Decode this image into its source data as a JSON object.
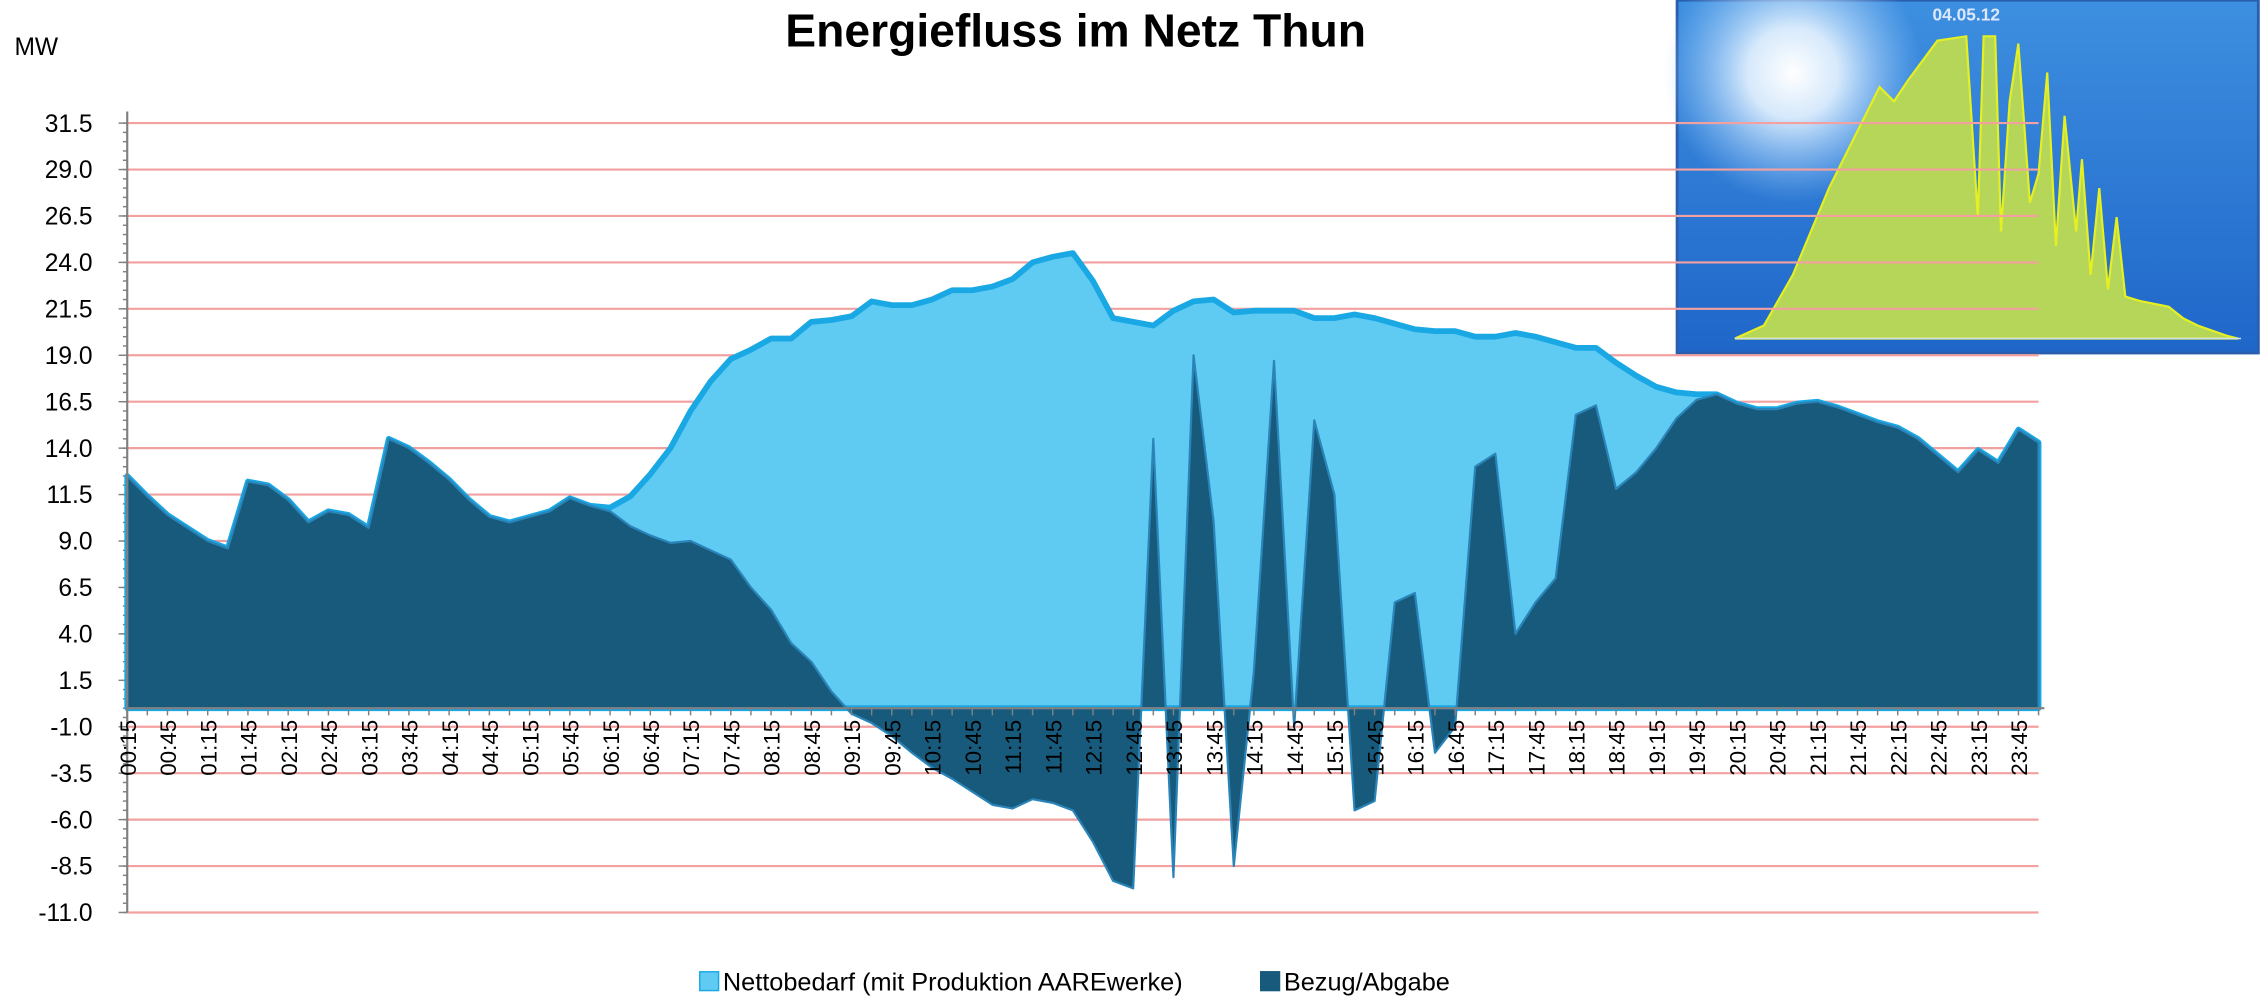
{
  "chart_data": {
    "type": "area",
    "title": "Energiefluss im Netz Thun",
    "y_label": "MW",
    "inset_title": "04.05.12",
    "categories": [
      "00:15",
      null,
      "00:45",
      null,
      "01:15",
      null,
      "01:45",
      null,
      "02:15",
      null,
      "02:45",
      null,
      "03:15",
      null,
      "03:45",
      null,
      "04:15",
      null,
      "04:45",
      null,
      "05:15",
      null,
      "05:45",
      null,
      "06:15",
      null,
      "06:45",
      null,
      "07:15",
      null,
      "07:45",
      null,
      "08:15",
      null,
      "08:45",
      null,
      "09:15",
      null,
      "09:45",
      null,
      "10:15",
      null,
      "10:45",
      null,
      "11:15",
      null,
      "11:45",
      null,
      "12:15",
      null,
      "12:45",
      null,
      "13:15",
      null,
      "13:45",
      null,
      "14:15",
      null,
      "14:45",
      null,
      "15:15",
      null,
      "15:45",
      null,
      "16:15",
      null,
      "16:45",
      null,
      "17:15",
      null,
      "17:45",
      null,
      "18:15",
      null,
      "18:45",
      null,
      "19:15",
      null,
      "19:45",
      null,
      "20:15",
      null,
      "20:45",
      null,
      "21:15",
      null,
      "21:45",
      null,
      "22:15",
      null,
      "22:45",
      null,
      "23:15",
      null,
      "23:45",
      null
    ],
    "series": [
      {
        "name": "Nettobedarf (mit Produktion AAREwerke)",
        "color": "#5fcbf3",
        "values": [
          12.5,
          11.4,
          10.4,
          9.7,
          9.0,
          8.6,
          12.2,
          12.0,
          11.2,
          10.0,
          10.6,
          10.4,
          9.7,
          14.5,
          14.0,
          13.2,
          12.3,
          11.2,
          10.3,
          10.0,
          10.3,
          10.6,
          11.3,
          10.9,
          10.8,
          11.4,
          12.6,
          14.0,
          16.0,
          17.6,
          18.8,
          19.3,
          19.9,
          19.9,
          20.8,
          20.9,
          21.1,
          21.9,
          21.7,
          21.7,
          22.0,
          22.5,
          22.5,
          22.7,
          23.1,
          24.0,
          24.3,
          24.5,
          23.0,
          21.0,
          20.8,
          20.6,
          21.4,
          21.9,
          22.0,
          21.3,
          21.4,
          21.4,
          21.4,
          21.0,
          21.0,
          21.2,
          21.0,
          20.7,
          20.4,
          20.3,
          20.3,
          20.0,
          20.0,
          20.2,
          20.0,
          19.7,
          19.4,
          19.4,
          18.6,
          17.9,
          17.3,
          17.0,
          16.9,
          16.9,
          16.4,
          16.1,
          16.1,
          16.4,
          16.5,
          16.2,
          15.8,
          15.4,
          15.1,
          14.5,
          13.6,
          12.7,
          13.9,
          13.2,
          15.0,
          14.3
        ]
      },
      {
        "name": "Bezug/Abgabe",
        "color": "#175a7c",
        "values": [
          12.5,
          11.4,
          10.4,
          9.7,
          9.0,
          8.6,
          12.2,
          12.0,
          11.2,
          10.0,
          10.6,
          10.4,
          9.7,
          14.5,
          14.0,
          13.2,
          12.3,
          11.2,
          10.3,
          10.0,
          10.3,
          10.6,
          11.3,
          10.9,
          10.6,
          9.8,
          9.3,
          8.9,
          9.0,
          8.5,
          8.0,
          6.5,
          5.3,
          3.5,
          2.5,
          0.9,
          -0.3,
          -0.8,
          -1.5,
          -2.4,
          -3.2,
          -3.8,
          -4.5,
          -5.2,
          -5.4,
          -4.9,
          -5.1,
          -5.5,
          -7.2,
          -9.3,
          -9.7,
          14.5,
          -9.1,
          19.0,
          10.0,
          -8.5,
          2.0,
          18.7,
          -1.0,
          15.5,
          11.5,
          -5.5,
          -5.0,
          5.7,
          6.2,
          -2.4,
          -1.0,
          13.0,
          13.7,
          4.0,
          5.7,
          7.0,
          15.8,
          16.3,
          11.8,
          12.7,
          14.0,
          15.6,
          16.6,
          16.9,
          16.4,
          16.1,
          16.1,
          16.4,
          16.5,
          16.2,
          15.8,
          15.4,
          15.1,
          14.5,
          13.6,
          12.7,
          13.9,
          13.2,
          15.0,
          14.3
        ]
      }
    ],
    "ylim": [
      -11,
      31.5
    ],
    "yticks": [
      {
        "value": -11,
        "label": "-11.0"
      },
      -8.5,
      {
        "value": -6,
        "label": "-6.0"
      },
      -3.5,
      {
        "value": -1,
        "label": "-1.0"
      },
      1.5,
      {
        "value": 4,
        "label": "4.0"
      },
      6.5,
      {
        "value": 9,
        "label": "9.0"
      },
      11.5,
      {
        "value": 14,
        "label": "14.0"
      },
      16.5,
      {
        "value": 19,
        "label": "19.0"
      },
      21.5,
      {
        "value": 24,
        "label": "24.0"
      },
      26.5,
      {
        "value": 29,
        "label": "29.0"
      },
      31.5
    ],
    "grid": true,
    "grid_color": "#f2a0a0",
    "legend": "bottom"
  }
}
